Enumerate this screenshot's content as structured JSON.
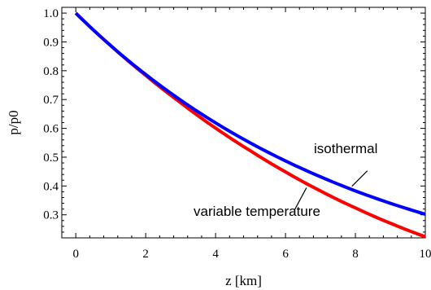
{
  "chart_data": {
    "type": "line",
    "title": "",
    "xlabel": "z [km]",
    "ylabel": "p/p0",
    "xlim": [
      -0.4,
      10
    ],
    "ylim": [
      0.22,
      1.02
    ],
    "grid": false,
    "x_ticks": [
      0,
      2,
      4,
      6,
      8,
      10
    ],
    "x_tick_labels": [
      "0",
      "2",
      "4",
      "6",
      "8",
      "10"
    ],
    "y_ticks": [
      0.3,
      0.4,
      0.5,
      0.6,
      0.7,
      0.8,
      0.9,
      1.0
    ],
    "y_tick_labels": [
      "0.3",
      "0.4",
      "0.5",
      "0.6",
      "0.7",
      "0.8",
      "0.9",
      "1.0"
    ],
    "x": [
      0,
      1,
      2,
      3,
      4,
      5,
      6,
      7,
      8,
      9,
      10
    ],
    "series": [
      {
        "label": "isothermal",
        "color": "#0000ff",
        "values": [
          1.0,
          0.887,
          0.787,
          0.698,
          0.619,
          0.549,
          0.487,
          0.432,
          0.383,
          0.34,
          0.302
        ]
      },
      {
        "label": "variable temperature",
        "color": "#ff0000",
        "values": [
          1.0,
          0.887,
          0.784,
          0.689,
          0.601,
          0.522,
          0.449,
          0.383,
          0.324,
          0.271,
          0.224
        ]
      }
    ],
    "annotations": [
      {
        "text": "isothermal",
        "series": "isothermal",
        "pointer_x": 7.9
      },
      {
        "text": "variable temperature",
        "series": "variable temperature",
        "pointer_x": 6.6
      }
    ]
  }
}
